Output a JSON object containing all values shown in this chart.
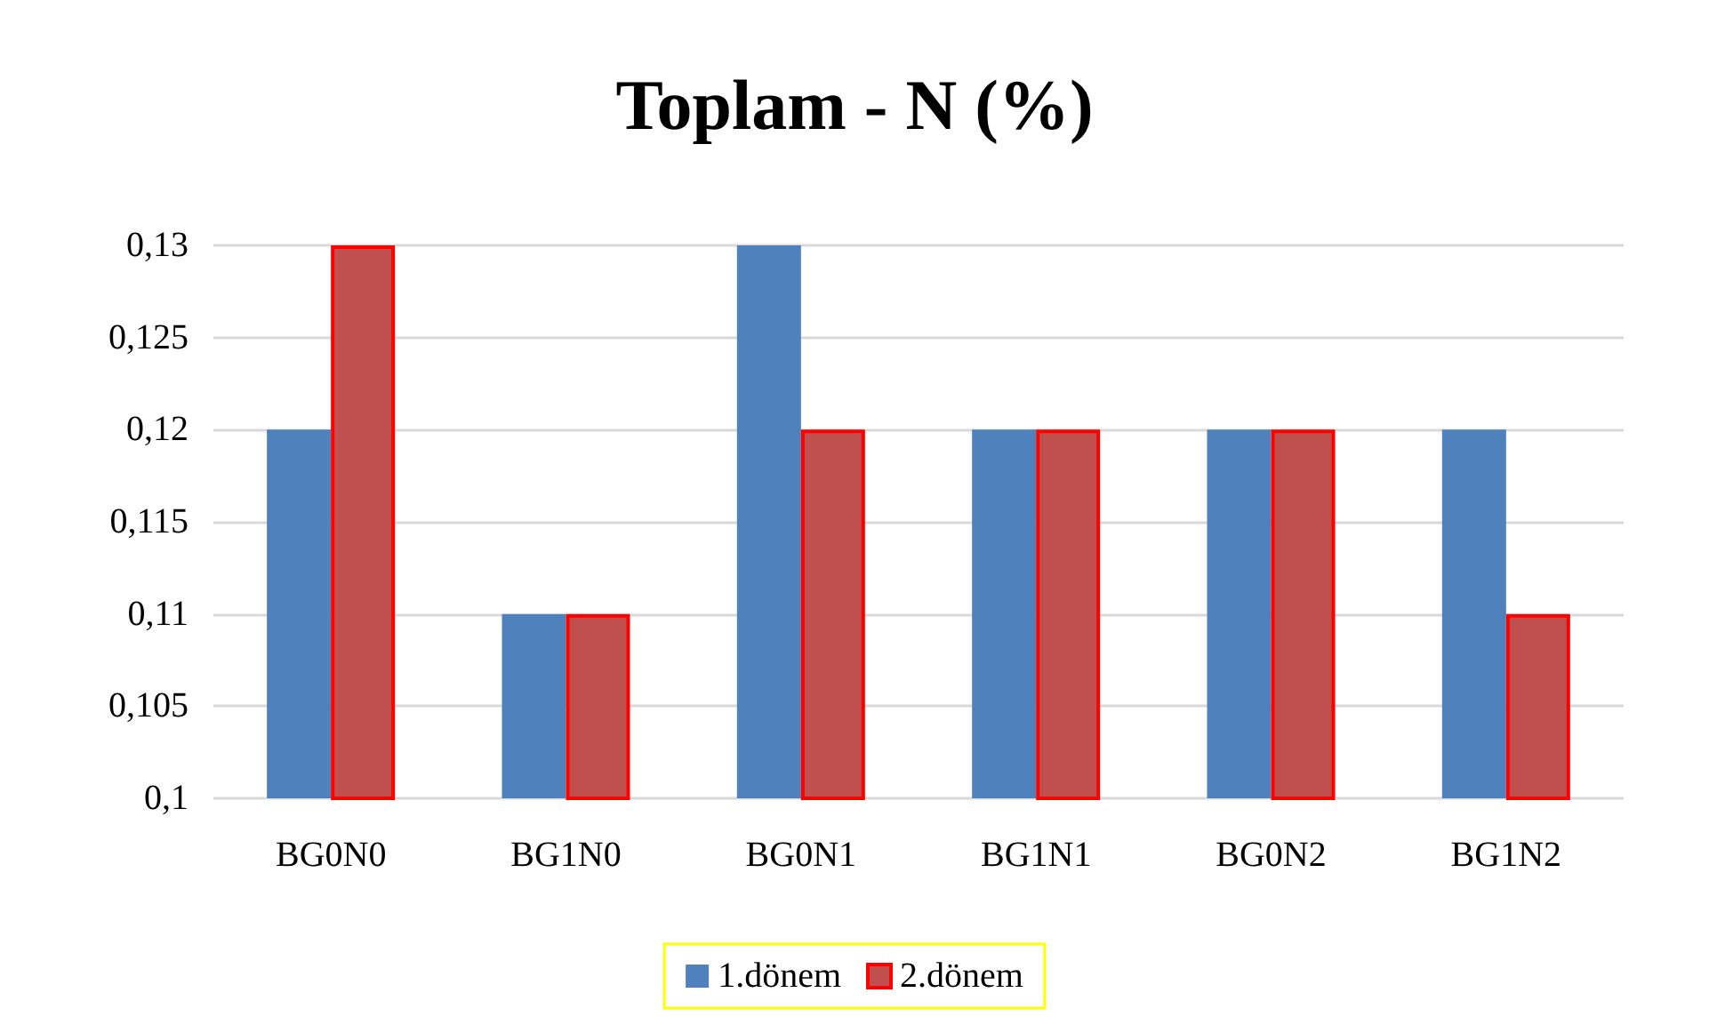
{
  "chart_data": {
    "type": "bar",
    "title": "Toplam - N (%)",
    "categories": [
      "BG0N0",
      "BG1N0",
      "BG0N1",
      "BG1N1",
      "BG0N2",
      "BG1N2"
    ],
    "series": [
      {
        "name": "1.dönem",
        "color": "#4f81bd",
        "values": [
          0.12,
          0.11,
          0.13,
          0.12,
          0.12,
          0.12
        ]
      },
      {
        "name": "2.dönem",
        "color": "#c0504d",
        "values": [
          0.13,
          0.11,
          0.12,
          0.12,
          0.12,
          0.11
        ]
      }
    ],
    "ylim": [
      0.1,
      0.13
    ],
    "yticks": [
      {
        "value": 0.1,
        "label": "0,1"
      },
      {
        "value": 0.105,
        "label": "0,105"
      },
      {
        "value": 0.11,
        "label": "0,11"
      },
      {
        "value": 0.115,
        "label": "0,115"
      },
      {
        "value": 0.12,
        "label": "0,12"
      },
      {
        "value": 0.125,
        "label": "0,125"
      },
      {
        "value": 0.13,
        "label": "0,13"
      }
    ],
    "grid": "y",
    "legend": "bottom"
  }
}
